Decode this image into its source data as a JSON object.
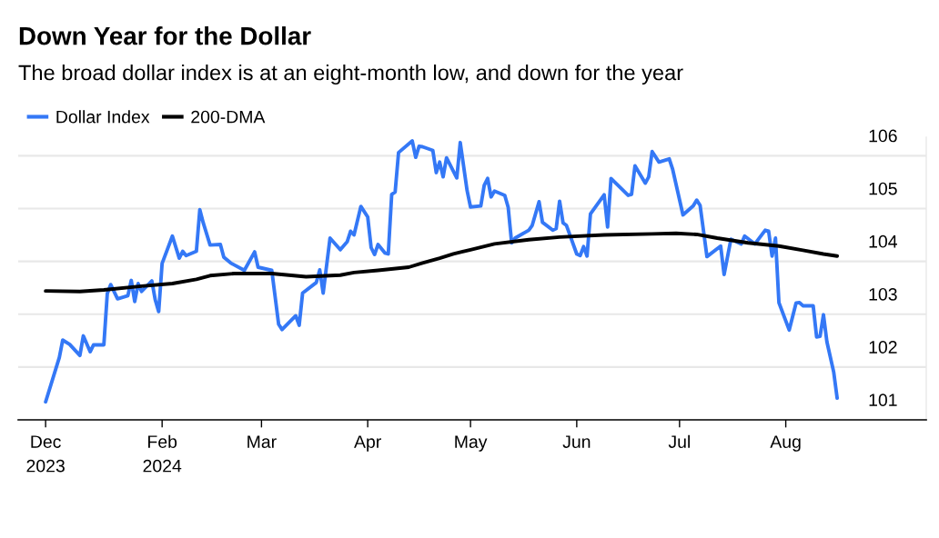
{
  "chart_data": {
    "type": "line",
    "title": "Down Year for the Dollar",
    "subtitle": "The broad dollar index is at an eight-month low, and down for the year",
    "series": [
      {
        "name": "Dollar Index",
        "color": "#3478f6",
        "x": [
          "2023-12-29",
          "2024-01-02",
          "2024-01-03",
          "2024-01-05",
          "2024-01-08",
          "2024-01-09",
          "2024-01-11",
          "2024-01-12",
          "2024-01-15",
          "2024-01-16",
          "2024-01-17",
          "2024-01-19",
          "2024-01-22",
          "2024-01-23",
          "2024-01-24",
          "2024-01-25",
          "2024-01-26",
          "2024-01-29",
          "2024-01-30",
          "2024-01-31",
          "2024-02-01",
          "2024-02-04",
          "2024-02-06",
          "2024-02-07",
          "2024-02-08",
          "2024-02-11",
          "2024-02-12",
          "2024-02-13",
          "2024-02-15",
          "2024-02-18",
          "2024-02-19",
          "2024-02-21",
          "2024-02-25",
          "2024-02-28",
          "2024-02-29",
          "2024-03-04",
          "2024-03-06",
          "2024-03-07",
          "2024-03-11",
          "2024-03-12",
          "2024-03-13",
          "2024-03-17",
          "2024-03-18",
          "2024-03-19",
          "2024-03-21",
          "2024-03-24",
          "2024-03-26",
          "2024-03-27",
          "2024-03-28",
          "2024-03-30",
          "2024-04-01",
          "2024-04-02",
          "2024-04-03",
          "2024-04-04",
          "2024-04-06",
          "2024-04-07",
          "2024-04-08",
          "2024-04-09",
          "2024-04-10",
          "2024-04-14",
          "2024-04-15",
          "2024-04-16",
          "2024-04-17",
          "2024-04-20",
          "2024-04-21",
          "2024-04-22",
          "2024-04-23",
          "2024-04-24",
          "2024-04-27",
          "2024-04-28",
          "2024-04-30",
          "2024-05-01",
          "2024-05-04",
          "2024-05-05",
          "2024-05-06",
          "2024-05-07",
          "2024-05-08",
          "2024-05-11",
          "2024-05-12",
          "2024-05-13",
          "2024-05-14",
          "2024-05-18",
          "2024-05-19",
          "2024-05-21",
          "2024-05-22",
          "2024-05-25",
          "2024-05-26",
          "2024-05-27",
          "2024-05-28",
          "2024-05-29",
          "2024-06-01",
          "2024-06-02",
          "2024-06-03",
          "2024-06-04",
          "2024-06-05",
          "2024-06-09",
          "2024-06-10",
          "2024-06-11",
          "2024-06-16",
          "2024-06-17",
          "2024-06-18",
          "2024-06-21",
          "2024-06-22",
          "2024-06-23",
          "2024-06-25",
          "2024-06-28",
          "2024-06-29",
          "2024-07-02",
          "2024-07-05",
          "2024-07-06",
          "2024-07-07",
          "2024-07-09",
          "2024-07-13",
          "2024-07-14",
          "2024-07-16",
          "2024-07-19",
          "2024-07-20",
          "2024-07-23",
          "2024-07-26",
          "2024-07-27",
          "2024-07-28",
          "2024-07-29",
          "2024-07-30",
          "2024-08-02",
          "2024-08-04",
          "2024-08-05",
          "2024-08-06",
          "2024-08-09",
          "2024-08-10",
          "2024-08-11",
          "2024-08-12",
          "2024-08-13",
          "2024-08-15",
          "2024-08-16"
        ],
        "values": [
          101.34,
          102.18,
          102.51,
          102.43,
          102.22,
          102.59,
          102.29,
          102.42,
          102.42,
          103.39,
          103.56,
          103.29,
          103.35,
          103.64,
          103.24,
          103.58,
          103.43,
          103.63,
          103.27,
          103.05,
          103.96,
          104.48,
          104.06,
          104.19,
          104.11,
          104.19,
          104.98,
          104.73,
          104.31,
          104.32,
          104.08,
          103.97,
          103.83,
          104.18,
          103.89,
          103.83,
          102.81,
          102.71,
          102.97,
          102.79,
          103.4,
          103.6,
          103.84,
          103.4,
          104.44,
          104.22,
          104.37,
          104.57,
          104.5,
          105.04,
          104.84,
          104.26,
          104.13,
          104.32,
          104.16,
          104.14,
          105.27,
          105.31,
          106.06,
          106.28,
          105.97,
          106.18,
          106.17,
          106.1,
          105.68,
          105.88,
          105.6,
          105.96,
          105.58,
          106.25,
          105.34,
          105.03,
          105.05,
          105.44,
          105.57,
          105.22,
          105.33,
          105.25,
          105.02,
          104.35,
          104.44,
          104.59,
          104.68,
          105.13,
          104.74,
          104.59,
          104.62,
          105.14,
          104.73,
          104.68,
          104.14,
          104.11,
          104.28,
          104.1,
          104.9,
          105.26,
          104.65,
          105.57,
          105.25,
          105.27,
          105.81,
          105.48,
          105.6,
          106.08,
          105.88,
          105.94,
          105.74,
          104.88,
          105.05,
          105.16,
          105.06,
          104.09,
          104.29,
          103.75,
          104.42,
          104.33,
          104.48,
          104.33,
          104.59,
          104.57,
          104.1,
          104.44,
          103.22,
          102.7,
          103.21,
          103.22,
          103.16,
          103.16,
          102.57,
          102.58,
          102.99,
          102.48,
          101.9,
          101.41
        ]
      },
      {
        "name": "200-DMA",
        "color": "#000000",
        "x": [
          "2023-12-29",
          "2024-01-08",
          "2024-01-15",
          "2024-01-26",
          "2024-02-04",
          "2024-02-11",
          "2024-02-15",
          "2024-02-22",
          "2024-03-04",
          "2024-03-14",
          "2024-03-24",
          "2024-03-28",
          "2024-04-04",
          "2024-04-13",
          "2024-04-17",
          "2024-04-22",
          "2024-04-26",
          "2024-05-01",
          "2024-05-08",
          "2024-05-18",
          "2024-05-27",
          "2024-06-09",
          "2024-06-23",
          "2024-06-30",
          "2024-07-06",
          "2024-07-12",
          "2024-07-21",
          "2024-07-30",
          "2024-08-06",
          "2024-08-12",
          "2024-08-16"
        ],
        "values": [
          103.44,
          103.43,
          103.46,
          103.53,
          103.58,
          103.66,
          103.73,
          103.77,
          103.77,
          103.71,
          103.74,
          103.79,
          103.83,
          103.89,
          103.97,
          104.06,
          104.14,
          104.22,
          104.33,
          104.41,
          104.46,
          104.5,
          104.52,
          104.53,
          104.51,
          104.44,
          104.35,
          104.29,
          104.21,
          104.14,
          104.1
        ]
      }
    ],
    "xlim": [
      "2023-12-21",
      "2024-09-11"
    ],
    "xticks": [
      {
        "value": "2023-12-29",
        "label": "Dec\n2023"
      },
      {
        "value": "2024-02-01",
        "label": "Feb\n2024"
      },
      {
        "value": "2024-03-01",
        "label": "Mar"
      },
      {
        "value": "2024-04-01",
        "label": "Apr"
      },
      {
        "value": "2024-05-01",
        "label": "May"
      },
      {
        "value": "2024-06-01",
        "label": "Jun"
      },
      {
        "value": "2024-07-01",
        "label": "Jul"
      },
      {
        "value": "2024-08-01",
        "label": "Aug"
      }
    ],
    "ylim": [
      101,
      106.35
    ],
    "yticks": [
      101,
      102,
      103,
      104,
      105,
      106
    ],
    "grid": "y",
    "legend": "top left"
  }
}
